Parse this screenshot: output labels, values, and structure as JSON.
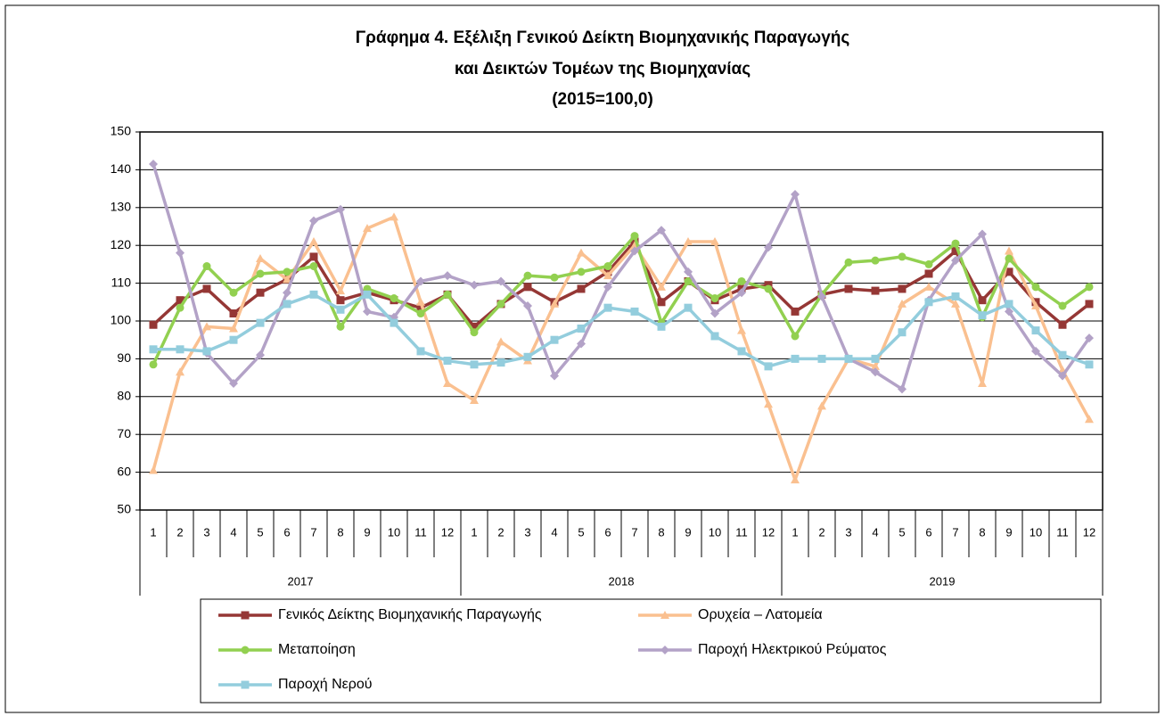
{
  "chart_data": {
    "type": "line",
    "title_lines": [
      "Γράφημα 4. Εξέλιξη Γενικού Δείκτη Βιομηχανικής Παραγωγής",
      "και Δεικτών Τομέων της Βιομηχανίας",
      "(2015=100,0)"
    ],
    "categories": [
      "1",
      "2",
      "3",
      "4",
      "5",
      "6",
      "7",
      "8",
      "9",
      "10",
      "11",
      "12",
      "1",
      "2",
      "3",
      "4",
      "5",
      "6",
      "7",
      "8",
      "9",
      "10",
      "11",
      "12",
      "1",
      "2",
      "3",
      "4",
      "5",
      "6",
      "7",
      "8",
      "9",
      "10",
      "11",
      "12"
    ],
    "groups": [
      {
        "label": "2017",
        "size": 12
      },
      {
        "label": "2018",
        "size": 12
      },
      {
        "label": "2019",
        "size": 12
      }
    ],
    "ylim": [
      50,
      150
    ],
    "yticks": [
      50,
      60,
      70,
      80,
      90,
      100,
      110,
      120,
      130,
      140,
      150
    ],
    "grid": true,
    "legend": "bottom",
    "series": [
      {
        "name": "Γενικός Δείκτης Βιομηχανικής Παραγωγής",
        "color": "#953735",
        "marker": "square",
        "values": [
          99,
          105.5,
          108.5,
          102,
          107.5,
          111,
          117,
          105.5,
          107.5,
          105.5,
          103.5,
          107,
          98.5,
          104.5,
          109,
          105,
          108.5,
          113,
          121,
          105,
          110.5,
          105.5,
          108.5,
          109.5,
          102.5,
          107,
          108.5,
          108,
          108.5,
          112.5,
          118.5,
          105.5,
          113,
          105,
          99,
          104.5
        ]
      },
      {
        "name": "Ορυχεία – Λατομεία",
        "color": "#FAC090",
        "marker": "triangle",
        "values": [
          60.5,
          86.5,
          98.5,
          98,
          116.5,
          111,
          121,
          108,
          124.5,
          127.5,
          105,
          83.5,
          79,
          94.5,
          89.5,
          104.5,
          118,
          112,
          120,
          109,
          121,
          121,
          97.5,
          78,
          58,
          77.5,
          90,
          88,
          104.5,
          109,
          104.5,
          83.5,
          118.5,
          104,
          87,
          74
        ]
      },
      {
        "name": "Μεταποίηση",
        "color": "#92D050",
        "marker": "circle",
        "values": [
          88.5,
          103.5,
          114.5,
          107.5,
          112.5,
          113,
          114.5,
          98.5,
          108.5,
          106,
          102,
          107,
          97,
          104.5,
          112,
          111.5,
          113,
          114.5,
          122.5,
          99.5,
          110.5,
          106,
          110.5,
          108.5,
          96,
          107,
          115.5,
          116,
          117,
          115,
          120.5,
          101,
          116.5,
          109,
          104,
          109
        ]
      },
      {
        "name": "Παροχή Ηλεκτρικού Ρεύματος",
        "color": "#B3A2C7",
        "marker": "diamond",
        "values": [
          141.5,
          118,
          91.5,
          83.5,
          91,
          107.5,
          126.5,
          129.5,
          102.5,
          101,
          110.5,
          112,
          109.5,
          110.5,
          104,
          85.5,
          94,
          109,
          118.5,
          124,
          113,
          102,
          107.5,
          119.5,
          133.5,
          106.5,
          90,
          86.5,
          82,
          105.5,
          116,
          123,
          102.5,
          92,
          85.5,
          95.5
        ]
      },
      {
        "name": "Παροχή Νερού",
        "color": "#93CDDD",
        "marker": "square",
        "values": [
          92.5,
          92.5,
          92,
          95,
          99.5,
          104.5,
          107,
          103,
          107,
          99.5,
          92,
          89.5,
          88.5,
          89,
          90.5,
          95,
          98,
          103.5,
          102.5,
          98.5,
          103.5,
          96,
          92,
          88,
          90,
          90,
          90,
          90,
          97,
          105,
          106.5,
          101.5,
          104.5,
          97.5,
          91,
          88.5
        ]
      }
    ]
  }
}
